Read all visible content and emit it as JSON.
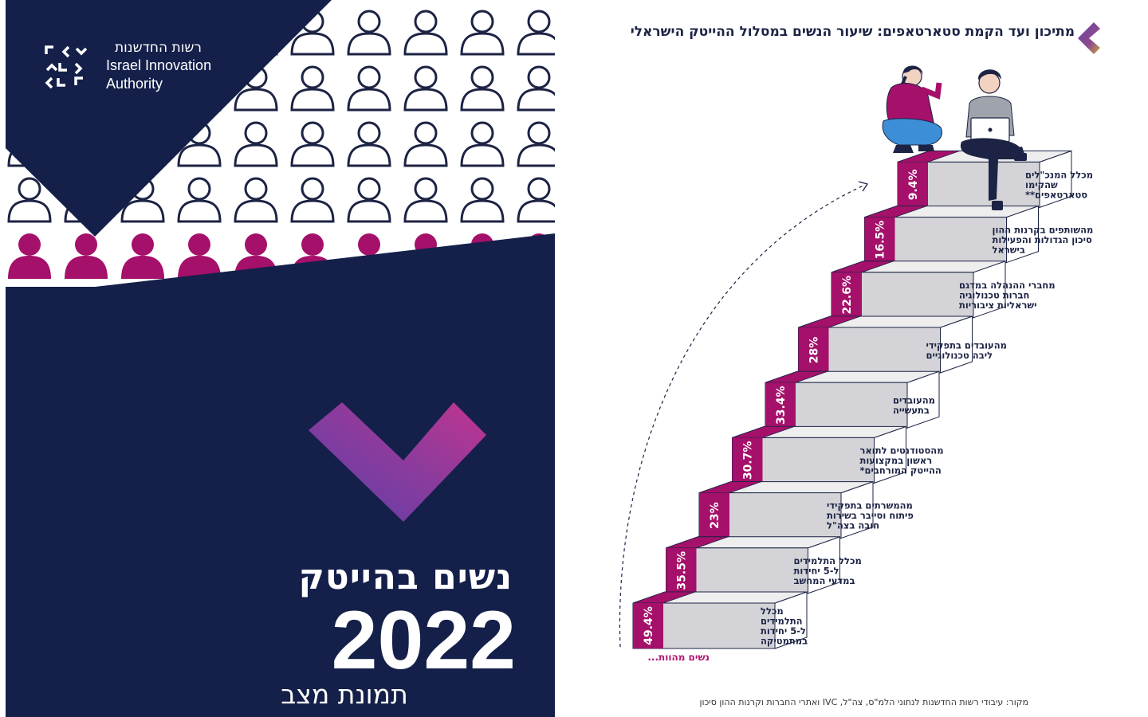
{
  "cover": {
    "logo_hebrew": "רשות החדשנות",
    "logo_english_line1": "Israel Innovation",
    "logo_english_line2": "Authority",
    "title": "נשים בהייטק",
    "year": "2022",
    "subtitle": "תמונת מצב"
  },
  "infographic": {
    "title": "מתיכון ועד הקמת סטארטאפים: שיעור הנשים במסלול ההייטק הישראלי",
    "women_label": "נשים מהוות...",
    "source": "מקור: עיבודי רשות החדשנות לנתוני הלמ\"ס, צה\"ל, IVC ואתרי החברות וקרנות ההון סיכון",
    "steps": [
      {
        "percent": "49.4%",
        "lines": [
          "מכלל",
          "התלמידים",
          "ל-5 יחידות",
          "במתמטיקה"
        ]
      },
      {
        "percent": "35.5%",
        "lines": [
          "מכלל התלמידים",
          "ל-5 יחידות",
          "במדעי המחשב"
        ]
      },
      {
        "percent": "23%",
        "lines": [
          "מהמשרתים בתפקידי",
          "פיתוח וסייבר בשירות",
          "חובה בצה\"ל"
        ]
      },
      {
        "percent": "30.7%",
        "lines": [
          "מהסטודנטים לתואר",
          "ראשון במקצועות",
          "ההייטק המורחבים*"
        ]
      },
      {
        "percent": "33.4%",
        "lines": [
          "מהעובדים",
          "בתעשייה"
        ]
      },
      {
        "percent": "28%",
        "lines": [
          "מהעובדים בתפקידי",
          "ליבה טכנולוגיים"
        ]
      },
      {
        "percent": "22.6%",
        "lines": [
          "מחברי ההנהלה במדגם",
          "חברות טכנולוגיה",
          "ישראליות ציבוריות"
        ]
      },
      {
        "percent": "16.5%",
        "lines": [
          "מהשותפים בקרנות ההון",
          "סיכון הגדולות והפעילות",
          "בישראל"
        ]
      },
      {
        "percent": "9.4%",
        "lines": [
          "מכלל המנכ\"לים",
          "שהקימו",
          "סטארטאפים**"
        ]
      }
    ]
  },
  "colors": {
    "navy": "#14204a",
    "magenta": "#a5106a",
    "step_face": "#d4d4d8",
    "step_top": "#eeeeef",
    "step_side": "#ffffff"
  }
}
